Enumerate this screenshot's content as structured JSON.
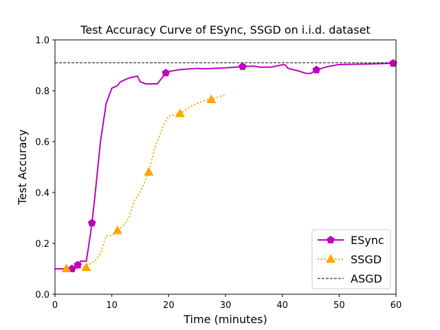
{
  "chart_data": {
    "type": "line",
    "title": "Test Accuracy Curve of ESync, SSGD on i.i.d. dataset",
    "xlabel": "Time (minutes)",
    "ylabel": "Test Accuracy",
    "xlim": [
      0,
      60
    ],
    "ylim": [
      0,
      1.0
    ],
    "xticks": [
      "0",
      "10",
      "20",
      "30",
      "40",
      "50",
      "60"
    ],
    "yticks": [
      "0.0",
      "0.2",
      "0.4",
      "0.6",
      "0.8",
      "1.0"
    ],
    "legend_position": "lower-right",
    "grid": false,
    "series": [
      {
        "name": "ESync",
        "color": "#bf00bf",
        "style": "solid",
        "marker": "pentagon",
        "x": [
          0,
          2,
          3,
          4,
          4.5,
          5.5,
          6,
          6.5,
          7,
          8,
          9,
          9.5,
          10,
          11,
          11.5,
          12,
          13,
          14,
          14.5,
          15,
          16,
          18,
          19.5,
          20,
          22,
          25,
          26,
          30,
          33,
          35,
          36,
          38,
          40,
          40.5,
          41,
          43,
          44,
          45,
          46,
          48,
          50,
          55,
          59.5
        ],
        "y": [
          0.1,
          0.1,
          0.1,
          0.11,
          0.13,
          0.13,
          0.2,
          0.28,
          0.38,
          0.6,
          0.75,
          0.78,
          0.81,
          0.82,
          0.835,
          0.84,
          0.85,
          0.855,
          0.858,
          0.835,
          0.827,
          0.827,
          0.87,
          0.876,
          0.883,
          0.888,
          0.886,
          0.89,
          0.895,
          0.897,
          0.893,
          0.893,
          0.902,
          0.902,
          0.888,
          0.877,
          0.869,
          0.868,
          0.882,
          0.895,
          0.903,
          0.905,
          0.908
        ],
        "marker_x": [
          3,
          4,
          6.5,
          19.5,
          33,
          46,
          59.5
        ],
        "marker_y": [
          0.1,
          0.115,
          0.28,
          0.87,
          0.895,
          0.882,
          0.908
        ]
      },
      {
        "name": "SSGD",
        "color": "#ffa500",
        "style": "dotted",
        "marker": "triangle",
        "x": [
          2,
          4,
          5.5,
          7,
          8,
          9,
          10,
          11,
          12,
          13,
          14,
          15,
          16.5,
          17.5,
          19,
          20,
          22,
          24,
          26,
          28,
          30
        ],
        "y": [
          0.1,
          0.1,
          0.11,
          0.13,
          0.16,
          0.23,
          0.23,
          0.25,
          0.27,
          0.3,
          0.37,
          0.4,
          0.48,
          0.57,
          0.66,
          0.7,
          0.71,
          0.74,
          0.76,
          0.77,
          0.785
        ],
        "marker_x": [
          2,
          5.5,
          11,
          16.5,
          22,
          27.5
        ],
        "marker_y": [
          0.1,
          0.105,
          0.25,
          0.48,
          0.71,
          0.765
        ]
      },
      {
        "name": "ASGD",
        "color": "#000000",
        "style": "dashed",
        "marker": "none",
        "x": [
          0,
          60
        ],
        "y": [
          0.91,
          0.91
        ]
      }
    ]
  }
}
